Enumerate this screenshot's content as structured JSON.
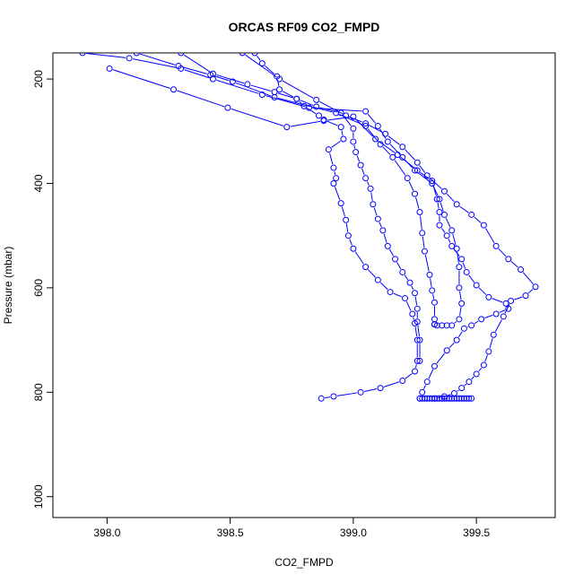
{
  "chart_data": {
    "type": "scatter",
    "title": "ORCAS RF09 CO2_FMPD",
    "xlabel": "CO2_FMPD",
    "ylabel": "Pressure (mbar)",
    "xlim": [
      397.78,
      399.82
    ],
    "ylim": [
      1040,
      150
    ],
    "y_reversed": true,
    "xticks": [
      398.0,
      398.5,
      399.0,
      399.5
    ],
    "xtick_labels": [
      "398.0",
      "398.5",
      "399.0",
      "399.5"
    ],
    "yticks": [
      200,
      400,
      600,
      800,
      1000
    ],
    "ytick_labels": [
      "200",
      "400",
      "600",
      "800",
      "1000"
    ],
    "grid": false,
    "legend": "none",
    "series_color": "#0000ff",
    "marker": "open-circle",
    "series": [
      {
        "points": [
          [
            398.6,
            150
          ],
          [
            398.63,
            170
          ],
          [
            398.69,
            195
          ],
          [
            398.7,
            220
          ],
          [
            398.77,
            238
          ],
          [
            398.8,
            252
          ],
          [
            398.86,
            270
          ],
          [
            398.88,
            278
          ],
          [
            398.95,
            292
          ],
          [
            398.96,
            315
          ],
          [
            398.9,
            335
          ],
          [
            398.92,
            370
          ],
          [
            398.93,
            390
          ],
          [
            398.92,
            400
          ],
          [
            398.95,
            438
          ],
          [
            398.97,
            470
          ],
          [
            398.98,
            500
          ],
          [
            399.0,
            525
          ],
          [
            399.05,
            560
          ],
          [
            399.1,
            585
          ],
          [
            399.15,
            608
          ],
          [
            399.21,
            620
          ],
          [
            399.24,
            650
          ],
          [
            399.25,
            668
          ],
          [
            399.26,
            700
          ],
          [
            399.26,
            740
          ],
          [
            399.25,
            760
          ],
          [
            399.2,
            778
          ],
          [
            399.11,
            792
          ],
          [
            399.03,
            800
          ],
          [
            398.92,
            808
          ],
          [
            398.87,
            812
          ]
        ]
      },
      {
        "points": [
          [
            398.3,
            150
          ],
          [
            398.43,
            190
          ],
          [
            398.57,
            210
          ],
          [
            398.68,
            225
          ],
          [
            398.77,
            238
          ],
          [
            398.85,
            253
          ],
          [
            398.95,
            265
          ],
          [
            399.0,
            295
          ],
          [
            399.0,
            320
          ],
          [
            399.01,
            340
          ],
          [
            399.03,
            365
          ],
          [
            399.05,
            390
          ],
          [
            399.07,
            410
          ],
          [
            399.08,
            440
          ],
          [
            399.1,
            468
          ],
          [
            399.12,
            490
          ],
          [
            399.14,
            520
          ],
          [
            399.17,
            545
          ],
          [
            399.2,
            570
          ],
          [
            399.23,
            590
          ],
          [
            399.25,
            610
          ],
          [
            399.26,
            640
          ],
          [
            399.26,
            665
          ],
          [
            399.27,
            700
          ],
          [
            399.27,
            740
          ]
        ]
      },
      {
        "points": [
          [
            398.12,
            150
          ],
          [
            398.29,
            175
          ],
          [
            398.42,
            192
          ],
          [
            398.51,
            205
          ],
          [
            398.68,
            235
          ],
          [
            398.93,
            265
          ],
          [
            399.05,
            290
          ],
          [
            399.11,
            325
          ],
          [
            399.16,
            350
          ],
          [
            399.22,
            390
          ],
          [
            399.25,
            420
          ],
          [
            399.27,
            455
          ],
          [
            399.28,
            495
          ],
          [
            399.29,
            530
          ],
          [
            399.31,
            575
          ],
          [
            399.32,
            605
          ],
          [
            399.33,
            628
          ],
          [
            399.33,
            660
          ],
          [
            399.33,
            670
          ]
        ]
      },
      {
        "points": [
          [
            397.9,
            150
          ],
          [
            398.09,
            160
          ],
          [
            398.3,
            180
          ],
          [
            398.43,
            200
          ],
          [
            398.63,
            230
          ],
          [
            398.82,
            255
          ],
          [
            399.05,
            262
          ],
          [
            399.1,
            290
          ],
          [
            399.14,
            320
          ],
          [
            399.2,
            350
          ],
          [
            399.25,
            375
          ],
          [
            399.32,
            400
          ],
          [
            399.35,
            430
          ],
          [
            399.37,
            460
          ],
          [
            399.4,
            490
          ],
          [
            399.42,
            525
          ],
          [
            399.43,
            560
          ],
          [
            399.43,
            600
          ],
          [
            399.44,
            630
          ],
          [
            399.43,
            660
          ],
          [
            399.4,
            672
          ],
          [
            399.38,
            672
          ],
          [
            399.36,
            672
          ],
          [
            399.34,
            672
          ],
          [
            399.33,
            670
          ]
        ]
      },
      {
        "points": [
          [
            398.01,
            180
          ],
          [
            398.27,
            220
          ],
          [
            398.49,
            255
          ],
          [
            398.73,
            292
          ],
          [
            398.88,
            280
          ],
          [
            399.0,
            272
          ],
          [
            399.09,
            315
          ],
          [
            399.18,
            345
          ],
          [
            399.26,
            375
          ],
          [
            399.32,
            395
          ],
          [
            399.34,
            430
          ],
          [
            399.35,
            455
          ],
          [
            399.35,
            480
          ],
          [
            399.38,
            500
          ],
          [
            399.4,
            520
          ],
          [
            399.44,
            545
          ],
          [
            399.46,
            570
          ],
          [
            399.5,
            595
          ],
          [
            399.55,
            618
          ],
          [
            399.62,
            630
          ],
          [
            399.63,
            640
          ],
          [
            399.58,
            650
          ],
          [
            399.52,
            660
          ],
          [
            399.48,
            672
          ],
          [
            399.45,
            678
          ],
          [
            399.42,
            700
          ],
          [
            399.38,
            720
          ],
          [
            399.33,
            750
          ],
          [
            399.3,
            780
          ],
          [
            399.28,
            800
          ],
          [
            399.27,
            812
          ]
        ]
      },
      {
        "points": [
          [
            398.55,
            150
          ],
          [
            398.7,
            200
          ],
          [
            398.85,
            240
          ],
          [
            398.97,
            270
          ],
          [
            399.05,
            285
          ],
          [
            399.13,
            305
          ],
          [
            399.2,
            330
          ],
          [
            399.26,
            360
          ],
          [
            399.3,
            385
          ],
          [
            399.37,
            415
          ],
          [
            399.42,
            440
          ],
          [
            399.48,
            460
          ],
          [
            399.53,
            480
          ],
          [
            399.58,
            520
          ],
          [
            399.63,
            545
          ],
          [
            399.68,
            565
          ],
          [
            399.74,
            598
          ],
          [
            399.7,
            615
          ],
          [
            399.64,
            625
          ],
          [
            399.61,
            655
          ],
          [
            399.57,
            690
          ],
          [
            399.55,
            722
          ],
          [
            399.53,
            748
          ],
          [
            399.5,
            765
          ],
          [
            399.47,
            780
          ],
          [
            399.44,
            792
          ],
          [
            399.41,
            802
          ],
          [
            399.37,
            808
          ],
          [
            399.33,
            812
          ]
        ]
      },
      {
        "points": [
          [
            399.27,
            812
          ],
          [
            399.28,
            812
          ],
          [
            399.29,
            812
          ],
          [
            399.3,
            812
          ],
          [
            399.31,
            812
          ],
          [
            399.32,
            812
          ],
          [
            399.33,
            812
          ],
          [
            399.34,
            812
          ],
          [
            399.35,
            812
          ],
          [
            399.36,
            812
          ],
          [
            399.37,
            812
          ],
          [
            399.38,
            812
          ],
          [
            399.39,
            812
          ],
          [
            399.4,
            812
          ],
          [
            399.41,
            812
          ],
          [
            399.42,
            812
          ],
          [
            399.43,
            812
          ],
          [
            399.44,
            812
          ],
          [
            399.45,
            812
          ],
          [
            399.46,
            812
          ],
          [
            399.47,
            812
          ],
          [
            399.48,
            812
          ]
        ]
      }
    ]
  }
}
